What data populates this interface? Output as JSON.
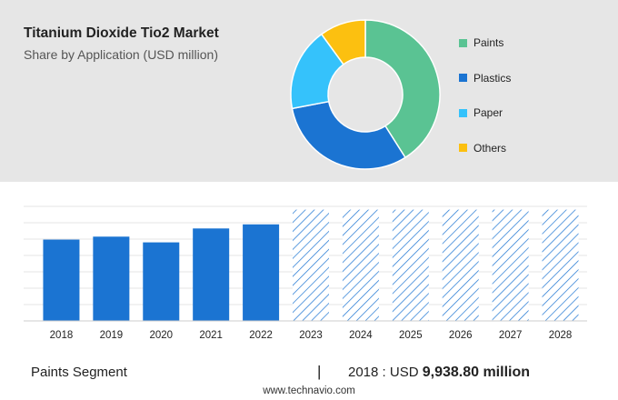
{
  "header": {
    "title": "Titanium Dioxide Tio2 Market",
    "subtitle": "Share by Application (USD million)"
  },
  "chart_data": [
    {
      "type": "pie",
      "title": "Share by Application (USD million)",
      "donut": true,
      "legend_position": "right",
      "categories": [
        "Paints",
        "Plastics",
        "Paper",
        "Others"
      ],
      "values": [
        41,
        31,
        18,
        10
      ],
      "colors": [
        "#5ac393",
        "#1b74d2",
        "#35c2fb",
        "#fcc010"
      ]
    },
    {
      "type": "bar",
      "categories": [
        "2018",
        "2019",
        "2020",
        "2021",
        "2022",
        "2023",
        "2024",
        "2025",
        "2026",
        "2027",
        "2028"
      ],
      "values": [
        9938.8,
        10300,
        9600,
        11300,
        11800,
        null,
        null,
        null,
        null,
        null,
        null
      ],
      "forecast_value": 13600,
      "ylim": [
        0,
        14000
      ],
      "grid": true,
      "colors": {
        "historic": "#1b74d2",
        "forecast_hatch": "#1b74d2"
      }
    }
  ],
  "footer": {
    "segment": "Paints Segment",
    "separator": "|",
    "year_label": "2018 : USD",
    "value": "9,938.80 million",
    "website": "www.technavio.com"
  }
}
